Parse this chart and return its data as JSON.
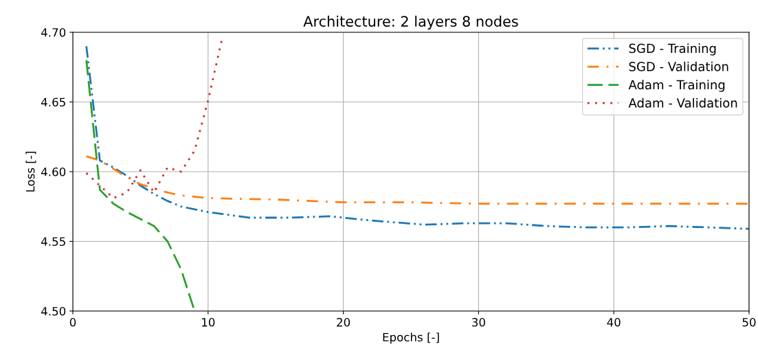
{
  "chart_data": {
    "type": "line",
    "title": "Architecture: 2 layers 8 nodes",
    "xlabel": "Epochs [-]",
    "ylabel": "Loss [-]",
    "xlim": [
      0,
      50
    ],
    "xticks": [
      0,
      10,
      20,
      30,
      40,
      50
    ],
    "ylim": [
      4.5,
      4.7
    ],
    "yticks": [
      {
        "value": 4.5,
        "label": "4.50"
      },
      {
        "value": 4.55,
        "label": "4.55"
      },
      {
        "value": 4.6,
        "label": "4.60"
      },
      {
        "value": 4.65,
        "label": "4.65"
      },
      {
        "value": 4.7,
        "label": "4.70"
      }
    ],
    "grid": true,
    "legend": "top right",
    "series": [
      {
        "name": "SGD - Training",
        "color": "#1f77b4",
        "line_style": "dashdotdot",
        "x": [
          1,
          2,
          3,
          4,
          5,
          6,
          7,
          8,
          10,
          13,
          16,
          19,
          22,
          26,
          29,
          32,
          35,
          38,
          41,
          44,
          47,
          50
        ],
        "values": [
          4.69,
          4.608,
          4.603,
          4.597,
          4.59,
          4.584,
          4.579,
          4.575,
          4.571,
          4.567,
          4.567,
          4.568,
          4.565,
          4.562,
          4.563,
          4.563,
          4.561,
          4.56,
          4.56,
          4.561,
          4.56,
          4.559
        ]
      },
      {
        "name": "SGD - Validation",
        "color": "#ff7f0e",
        "line_style": "dashdot",
        "x": [
          1,
          2,
          3,
          4,
          5,
          6,
          7,
          8,
          10,
          15,
          20,
          25,
          30,
          35,
          40,
          45,
          50
        ],
        "values": [
          4.611,
          4.608,
          4.602,
          4.596,
          4.591,
          4.588,
          4.585,
          4.583,
          4.581,
          4.58,
          4.578,
          4.578,
          4.577,
          4.577,
          4.577,
          4.577,
          4.577
        ]
      },
      {
        "name": "Adam - Training",
        "color": "#2ca02c",
        "line_style": "dashed",
        "x": [
          1,
          2,
          3,
          4,
          5,
          6,
          7,
          8,
          9
        ],
        "values": [
          4.68,
          4.587,
          4.577,
          4.571,
          4.566,
          4.561,
          4.55,
          4.53,
          4.5
        ]
      },
      {
        "name": "Adam - Validation",
        "color": "#d62728",
        "line_style": "dotted",
        "x": [
          1,
          2,
          3,
          4,
          5,
          6,
          7,
          8,
          9,
          10,
          11
        ],
        "values": [
          4.599,
          4.59,
          4.581,
          4.585,
          4.601,
          4.585,
          4.603,
          4.6,
          4.615,
          4.651,
          4.694
        ]
      }
    ]
  }
}
